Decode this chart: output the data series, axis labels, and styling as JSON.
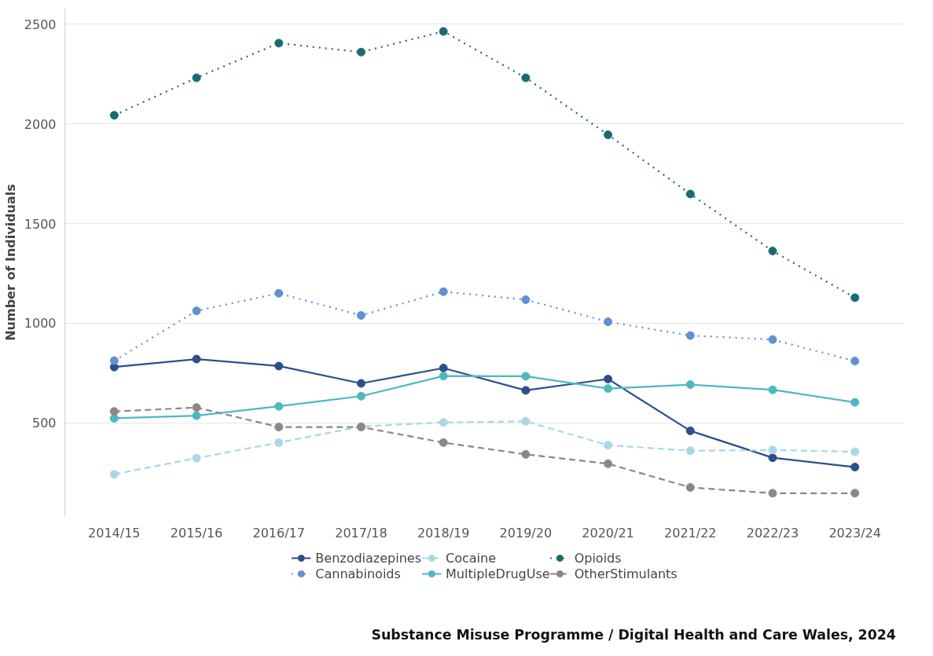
{
  "chart_data": {
    "type": "line",
    "ylabel": "Number of Individuals",
    "categories": [
      "2014/15",
      "2015/16",
      "2016/17",
      "2017/18",
      "2018/19",
      "2019/20",
      "2020/21",
      "2021/22",
      "2022/23",
      "2023/24"
    ],
    "series": [
      {
        "name": "Benzodiazepines",
        "color": "#2b4f8c",
        "line_style": "solid",
        "values": [
          780,
          820,
          785,
          698,
          775,
          663,
          720,
          460,
          325,
          278
        ]
      },
      {
        "name": "Cannabinoids",
        "color": "#6190d4",
        "line_style": "dotted",
        "values": [
          812,
          1062,
          1150,
          1039,
          1158,
          1118,
          1007,
          938,
          918,
          810
        ]
      },
      {
        "name": "Cocaine",
        "color": "#a8d8e6",
        "line_style": "dashed",
        "values": [
          242,
          323,
          401,
          482,
          502,
          508,
          388,
          360,
          364,
          355
        ]
      },
      {
        "name": "MultipleDrugUse",
        "color": "#4db8c2",
        "line_style": "solid",
        "values": [
          523,
          536,
          583,
          634,
          735,
          734,
          672,
          692,
          666,
          603
        ]
      },
      {
        "name": "Opioids",
        "color": "#1a6b73",
        "line_style": "dotted",
        "values": [
          2043,
          2231,
          2405,
          2360,
          2464,
          2231,
          1945,
          1648,
          1362,
          1128
        ]
      },
      {
        "name": "OtherStimulants",
        "color": "#8f8584",
        "line_style": "dashed",
        "values": [
          557,
          577,
          479,
          479,
          401,
          342,
          295,
          176,
          147,
          147
        ]
      }
    ],
    "ylim": [
      30,
      2580
    ],
    "yticks": [
      500,
      1000,
      1500,
      2000,
      2500
    ],
    "grid": "y",
    "marker": "circle",
    "legend": "bottom",
    "annotations": [
      "Substance Misuse Programme / Digital Health and Care Wales, 2024"
    ]
  }
}
